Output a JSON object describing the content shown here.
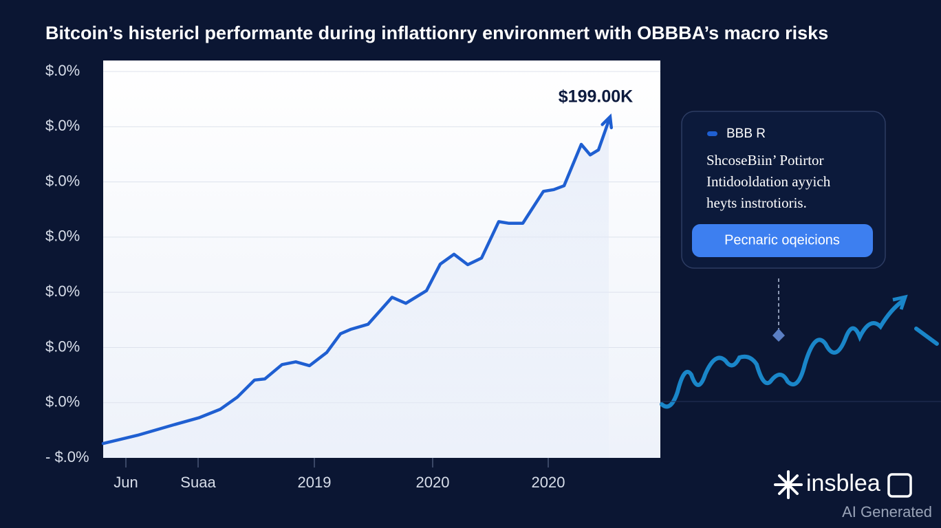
{
  "chart_data": {
    "type": "line",
    "title": "Bitcoin’s histericl performante during inflattionry environmert with OBBBA’s macro risks",
    "annotation": "$199.00K",
    "x": [
      0,
      50,
      100,
      140,
      170,
      195,
      220,
      235,
      260,
      280,
      300,
      325,
      345,
      360,
      385,
      400,
      420,
      440,
      470,
      490,
      510,
      530,
      550,
      575,
      590,
      610,
      640,
      655,
      670,
      695,
      708,
      720,
      735
    ],
    "series": [
      {
        "name": "BBB R",
        "color": "#1f5fd1",
        "values": [
          0.26,
          0.41,
          0.59,
          0.73,
          0.88,
          1.1,
          1.41,
          1.43,
          1.69,
          1.74,
          1.67,
          1.91,
          2.25,
          2.33,
          2.42,
          2.63,
          2.91,
          2.8,
          3.03,
          3.51,
          3.69,
          3.5,
          3.62,
          4.28,
          4.25,
          4.25,
          4.83,
          4.86,
          4.93,
          5.68,
          5.49,
          5.58,
          6.11
        ]
      }
    ],
    "xlim": [
      0,
      810
    ],
    "xticks": [
      {
        "value": 33,
        "label": "Jun"
      },
      {
        "value": 138,
        "label": "Suaa"
      },
      {
        "value": 307,
        "label": "2019"
      },
      {
        "value": 479,
        "label": "2020"
      },
      {
        "value": 647,
        "label": "2020"
      }
    ],
    "ylim": [
      0,
      7.2
    ],
    "yticks": [
      {
        "value": 0,
        "label": "- $.0%"
      },
      {
        "value": 1,
        "label": "$.0%"
      },
      {
        "value": 2,
        "label": "$.0%"
      },
      {
        "value": 3,
        "label": "$.0%"
      },
      {
        "value": 4,
        "label": "$.0%"
      },
      {
        "value": 5,
        "label": "$.0%"
      },
      {
        "value": 6,
        "label": "$.0%"
      },
      {
        "value": 7,
        "label": "$.0%"
      }
    ],
    "grid": true,
    "legend_text": [
      "ShcoseBiin’ Potirtor",
      "Intidooldation ayyich",
      "heyts instrotioris."
    ],
    "button": "Pecnaric oqeicions"
  },
  "brand": {
    "logo": "insblea",
    "note": "AI Generated"
  }
}
